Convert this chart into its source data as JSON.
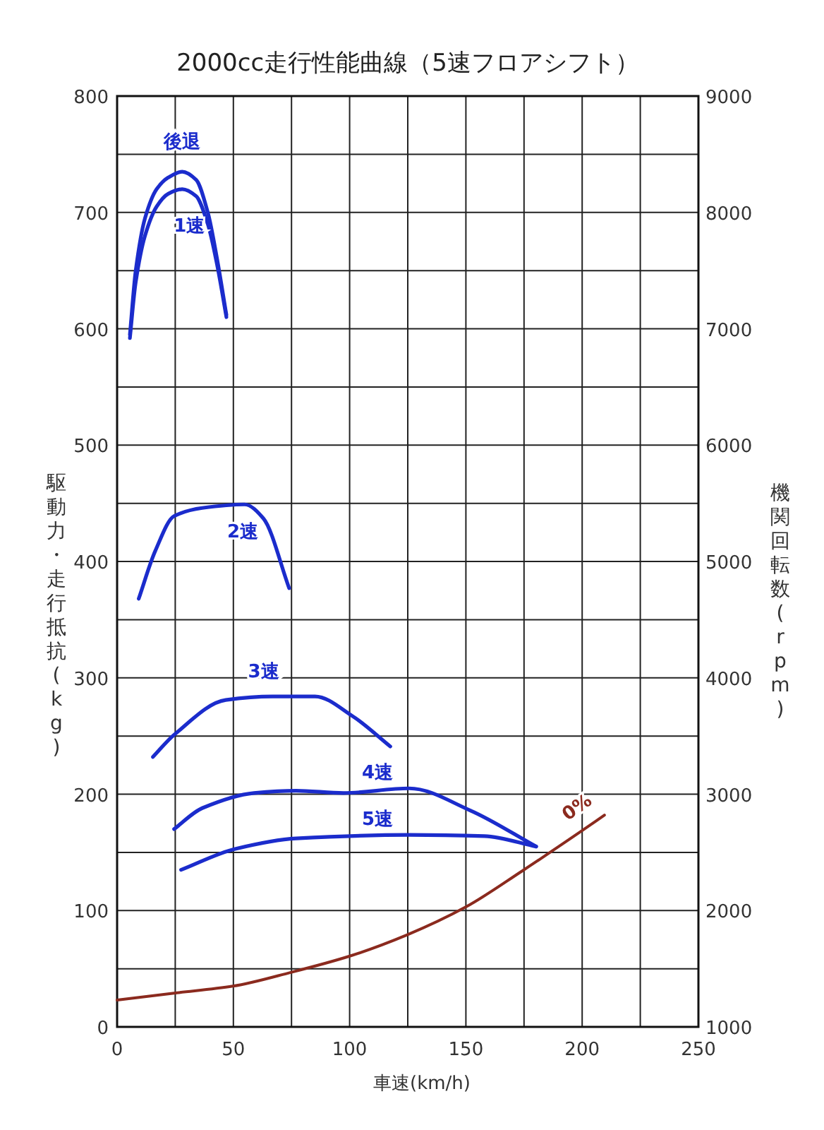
{
  "chart_data": {
    "type": "line",
    "title": "2000cc走行性能曲線（5速フロアシフト）",
    "xlabel": "車速(km/h)",
    "ylabel": "駆動力・走行抵抗(kg)",
    "y2label": "機関回転数(rpm)",
    "xlim": [
      0,
      250
    ],
    "ylim": [
      0,
      800
    ],
    "y2lim": [
      1000,
      9000
    ],
    "xticks": [
      0,
      {
        "value": 25,
        "label": null
      },
      50,
      {
        "value": 75,
        "label": null
      },
      100,
      {
        "value": 125,
        "label": null
      },
      150,
      {
        "value": 175,
        "label": null
      },
      200,
      {
        "value": 225,
        "label": null
      },
      250
    ],
    "yticks": [
      0,
      {
        "value": 50,
        "label": null
      },
      100,
      {
        "value": 150,
        "label": null
      },
      200,
      {
        "value": 250,
        "label": null
      },
      300,
      {
        "value": 350,
        "label": null
      },
      400,
      {
        "value": 450,
        "label": null
      },
      500,
      {
        "value": 550,
        "label": null
      },
      600,
      {
        "value": 650,
        "label": null
      },
      700,
      {
        "value": 750,
        "label": null
      },
      800
    ],
    "y2ticks": [
      1000,
      2000,
      3000,
      4000,
      5000,
      6000,
      7000,
      8000,
      9000
    ],
    "grid": true,
    "series": [
      {
        "name": "後退",
        "color": "#1b2ccc",
        "x": [
          5.5,
          8,
          12,
          17,
          22,
          28,
          34,
          39,
          43,
          47
        ],
        "values": [
          595,
          650,
          695,
          720,
          730,
          735,
          728,
          700,
          660,
          612
        ]
      },
      {
        "name": "1速",
        "color": "#1b2ccc",
        "x": [
          5.5,
          8,
          12,
          17,
          22,
          28,
          34,
          39,
          43,
          47
        ],
        "values": [
          592,
          640,
          680,
          705,
          716,
          720,
          714,
          690,
          655,
          610
        ]
      },
      {
        "name": "2速",
        "color": "#1b2ccc",
        "x": [
          9.3,
          16.4,
          24.5,
          36.6,
          54.8,
          62.9,
          74
        ],
        "values": [
          368,
          409,
          439,
          446,
          449,
          437,
          377
        ]
      },
      {
        "name": "3速",
        "color": "#1b2ccc",
        "x": [
          15.4,
          24.5,
          46.7,
          66.9,
          85.1,
          101.3,
          117.5
        ],
        "values": [
          232,
          251,
          281,
          284,
          284,
          267,
          241
        ]
      },
      {
        "name": "4速",
        "color": "#1b2ccc",
        "x": [
          24.5,
          36.6,
          58.9,
          77,
          97.3,
          125.6,
          151.9,
          180.2
        ],
        "values": [
          170,
          188,
          201,
          203,
          201,
          205,
          186,
          155
        ]
      },
      {
        "name": "5速",
        "color": "#1b2ccc",
        "x": [
          27.5,
          50.8,
          77,
          125.6,
          158,
          180.2
        ],
        "values": [
          135,
          153,
          162,
          165,
          164,
          155
        ]
      },
      {
        "name": "0%",
        "color": "#8b2a1e",
        "x": [
          0,
          24.5,
          49.8,
          75,
          100.3,
          124.6,
          149.9,
          174.2,
          199.5,
          209.6
        ],
        "values": [
          23,
          29,
          35,
          47,
          61,
          79,
          103,
          134,
          168,
          182
        ]
      }
    ]
  }
}
